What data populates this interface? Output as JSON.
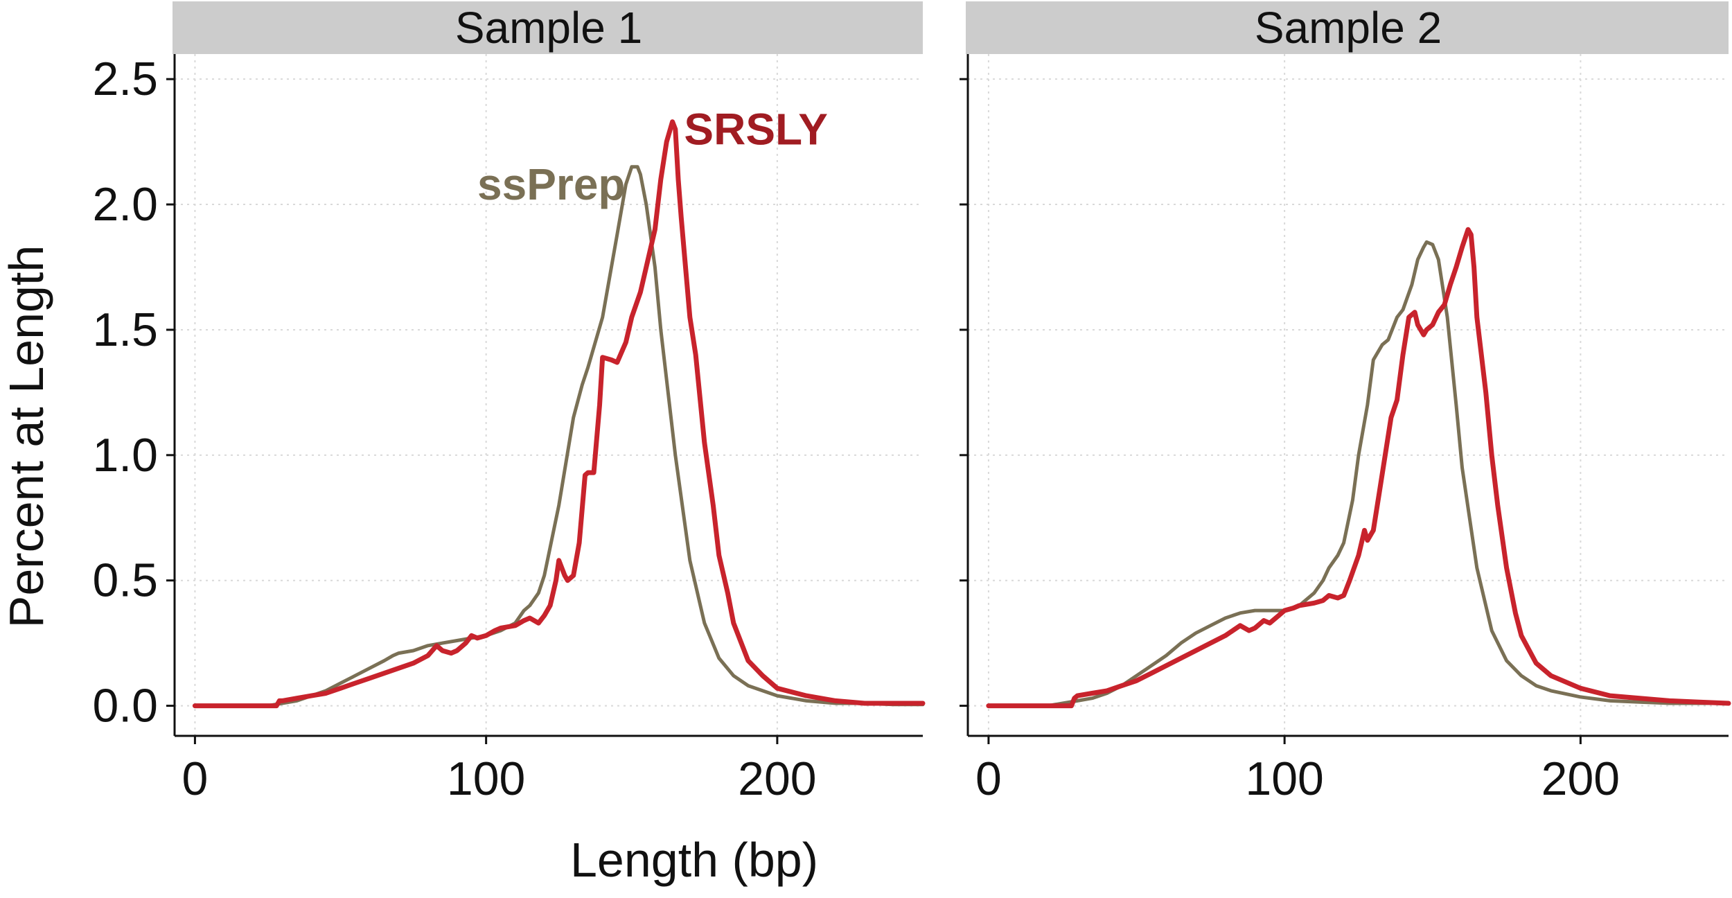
{
  "chart_data": {
    "type": "line",
    "xlabel": "Length (bp)",
    "ylabel": "Percent at Length",
    "xlim": [
      -7,
      250
    ],
    "ylim": [
      -0.12,
      2.6
    ],
    "xticks": [
      0,
      100,
      200
    ],
    "yticks": [
      0.0,
      0.5,
      1.0,
      1.5,
      2.0,
      2.5
    ],
    "xtick_labels": [
      "0",
      "100",
      "200"
    ],
    "ytick_labels": [
      "0.0",
      "0.5",
      "1.0",
      "1.5",
      "2.0",
      "2.5"
    ],
    "grid": true,
    "colors": {
      "SRSLY": "#c8232c",
      "ssPrep": "#7a7055",
      "annot_SRSLY": "#a01c22",
      "annot_ssPrep": "#7a7055"
    },
    "panels": [
      {
        "title": "Sample 1",
        "annotations": [
          {
            "series": "SRSLY",
            "text": "SRSLY",
            "x": 168,
            "y": 2.3
          },
          {
            "series": "ssPrep",
            "text": "ssPrep",
            "x": 97,
            "y": 2.08
          }
        ],
        "series": [
          {
            "name": "SRSLY",
            "x": [
              0,
              10,
              20,
              28,
              29,
              30,
              35,
              40,
              45,
              50,
              55,
              60,
              65,
              70,
              75,
              80,
              83,
              85,
              88,
              90,
              93,
              95,
              97,
              100,
              103,
              105,
              110,
              113,
              115,
              118,
              120,
              122,
              124,
              125,
              127,
              128,
              130,
              132,
              134,
              135,
              137,
              139,
              140,
              143,
              145,
              148,
              150,
              153,
              155,
              158,
              160,
              162,
              164,
              165,
              166,
              167,
              170,
              172,
              175,
              178,
              180,
              183,
              185,
              190,
              195,
              200,
              210,
              220,
              230,
              240,
              250
            ],
            "y": [
              0.0,
              0.0,
              0.0,
              0.0,
              0.02,
              0.02,
              0.03,
              0.04,
              0.05,
              0.07,
              0.09,
              0.11,
              0.13,
              0.15,
              0.17,
              0.2,
              0.24,
              0.22,
              0.21,
              0.22,
              0.25,
              0.28,
              0.27,
              0.28,
              0.3,
              0.31,
              0.32,
              0.34,
              0.35,
              0.33,
              0.36,
              0.4,
              0.5,
              0.58,
              0.52,
              0.5,
              0.52,
              0.65,
              0.92,
              0.93,
              0.93,
              1.2,
              1.39,
              1.38,
              1.37,
              1.45,
              1.55,
              1.65,
              1.75,
              1.9,
              2.1,
              2.25,
              2.33,
              2.3,
              2.1,
              1.95,
              1.55,
              1.4,
              1.05,
              0.8,
              0.6,
              0.45,
              0.33,
              0.18,
              0.12,
              0.07,
              0.04,
              0.02,
              0.01,
              0.01,
              0.01
            ]
          },
          {
            "name": "ssPrep",
            "x": [
              0,
              10,
              20,
              25,
              30,
              35,
              40,
              45,
              50,
              55,
              60,
              65,
              68,
              70,
              75,
              80,
              85,
              90,
              95,
              100,
              105,
              110,
              113,
              115,
              118,
              120,
              125,
              130,
              133,
              135,
              140,
              145,
              148,
              150,
              152,
              153,
              155,
              158,
              160,
              165,
              170,
              175,
              180,
              185,
              190,
              200,
              210,
              220,
              230,
              240,
              250
            ],
            "y": [
              0.0,
              0.0,
              0.0,
              0.0,
              0.01,
              0.02,
              0.04,
              0.06,
              0.09,
              0.12,
              0.15,
              0.18,
              0.2,
              0.21,
              0.22,
              0.24,
              0.25,
              0.26,
              0.27,
              0.28,
              0.3,
              0.33,
              0.38,
              0.4,
              0.45,
              0.52,
              0.8,
              1.15,
              1.28,
              1.35,
              1.55,
              1.88,
              2.08,
              2.15,
              2.15,
              2.12,
              2.0,
              1.75,
              1.5,
              1.0,
              0.58,
              0.33,
              0.19,
              0.12,
              0.08,
              0.04,
              0.02,
              0.01,
              0.01,
              0.005,
              0.005
            ]
          }
        ]
      },
      {
        "title": "Sample 2",
        "annotations": [],
        "series": [
          {
            "name": "SRSLY",
            "x": [
              0,
              10,
              20,
              28,
              29,
              30,
              35,
              40,
              45,
              50,
              55,
              60,
              65,
              70,
              75,
              80,
              85,
              88,
              90,
              93,
              95,
              98,
              100,
              103,
              105,
              110,
              113,
              115,
              118,
              120,
              122,
              125,
              127,
              128,
              130,
              132,
              134,
              136,
              138,
              140,
              142,
              144,
              145,
              147,
              148,
              150,
              152,
              154,
              156,
              158,
              160,
              162,
              163,
              164,
              165,
              168,
              170,
              172,
              175,
              178,
              180,
              185,
              190,
              200,
              210,
              220,
              230,
              240,
              250
            ],
            "y": [
              0.0,
              0.0,
              0.0,
              0.0,
              0.03,
              0.04,
              0.05,
              0.06,
              0.08,
              0.1,
              0.13,
              0.16,
              0.19,
              0.22,
              0.25,
              0.28,
              0.32,
              0.3,
              0.31,
              0.34,
              0.33,
              0.36,
              0.38,
              0.39,
              0.4,
              0.41,
              0.42,
              0.44,
              0.43,
              0.44,
              0.5,
              0.6,
              0.7,
              0.66,
              0.7,
              0.85,
              1.0,
              1.15,
              1.22,
              1.4,
              1.55,
              1.57,
              1.52,
              1.48,
              1.5,
              1.52,
              1.57,
              1.6,
              1.68,
              1.75,
              1.83,
              1.9,
              1.88,
              1.75,
              1.55,
              1.25,
              1.0,
              0.8,
              0.55,
              0.37,
              0.28,
              0.17,
              0.12,
              0.07,
              0.04,
              0.03,
              0.02,
              0.015,
              0.01
            ]
          },
          {
            "name": "ssPrep",
            "x": [
              0,
              10,
              20,
              25,
              30,
              35,
              40,
              45,
              50,
              55,
              60,
              65,
              70,
              75,
              80,
              85,
              90,
              95,
              100,
              105,
              110,
              113,
              115,
              118,
              120,
              123,
              125,
              128,
              130,
              133,
              135,
              138,
              140,
              143,
              145,
              147,
              148,
              150,
              152,
              155,
              158,
              160,
              165,
              170,
              175,
              180,
              185,
              190,
              200,
              210,
              220,
              230,
              240,
              250
            ],
            "y": [
              0.0,
              0.0,
              0.0,
              0.01,
              0.02,
              0.03,
              0.05,
              0.08,
              0.12,
              0.16,
              0.2,
              0.25,
              0.29,
              0.32,
              0.35,
              0.37,
              0.38,
              0.38,
              0.38,
              0.4,
              0.45,
              0.5,
              0.55,
              0.6,
              0.65,
              0.82,
              1.0,
              1.2,
              1.38,
              1.44,
              1.46,
              1.55,
              1.58,
              1.68,
              1.78,
              1.83,
              1.85,
              1.84,
              1.78,
              1.55,
              1.2,
              0.95,
              0.55,
              0.3,
              0.18,
              0.12,
              0.08,
              0.06,
              0.035,
              0.02,
              0.015,
              0.01,
              0.01,
              0.01
            ]
          }
        ]
      }
    ]
  }
}
